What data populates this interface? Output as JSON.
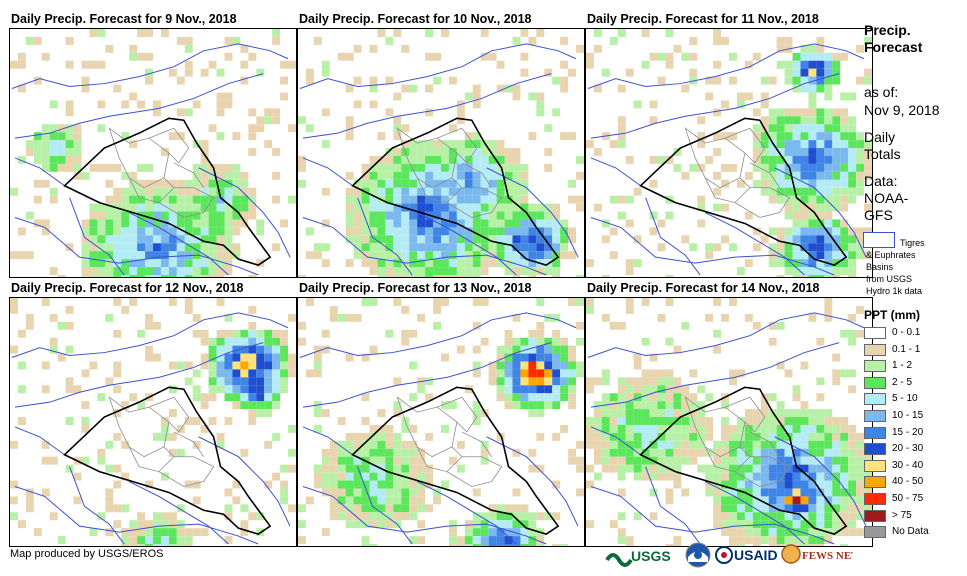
{
  "panels": [
    {
      "title": "Daily Precip. Forecast for 9 Nov., 2018"
    },
    {
      "title": "Daily Precip. Forecast for 10 Nov., 2018"
    },
    {
      "title": "Daily Precip. Forecast for 11 Nov., 2018"
    },
    {
      "title": "Daily Precip. Forecast for 12 Nov., 2018"
    },
    {
      "title": "Daily Precip. Forecast for 13 Nov., 2018"
    },
    {
      "title": "Daily Precip. Forecast for 14 Nov., 2018"
    }
  ],
  "sidebar": {
    "title_line1": "Precip.",
    "title_line2": "Forecast",
    "as_of_label": "as of:",
    "as_of_date": "Nov 9, 2018",
    "totals_line1": "Daily",
    "totals_line2": "Totals",
    "data_line1": "Data:",
    "data_line2": "NOAA-",
    "data_line3": "GFS",
    "basin_line1": "Tigres",
    "basin_line2": "& Euphrates",
    "basin_line3": "Basins",
    "basin_line4": "from USGS",
    "basin_line5": "Hydro 1k data"
  },
  "legend": {
    "title": "PPT (mm)",
    "items": [
      {
        "label": "0 - 0.1",
        "color": "#ffffff"
      },
      {
        "label": "0.1 - 1",
        "color": "#e8d5b0"
      },
      {
        "label": "1 - 2",
        "color": "#b8f0a8"
      },
      {
        "label": "2 - 5",
        "color": "#5ce65c"
      },
      {
        "label": "5 - 10",
        "color": "#b4ecf5"
      },
      {
        "label": "10 - 15",
        "color": "#7ab8ee"
      },
      {
        "label": "15 - 20",
        "color": "#3f84e6"
      },
      {
        "label": "20 - 30",
        "color": "#1f4fd0"
      },
      {
        "label": "30 - 40",
        "color": "#ffe27a"
      },
      {
        "label": "40 - 50",
        "color": "#ffa500"
      },
      {
        "label": "50 - 75",
        "color": "#ff2a00"
      },
      {
        "label": "> 75",
        "color": "#a11a1a"
      },
      {
        "label": "No Data",
        "color": "#999999"
      }
    ]
  },
  "footer": {
    "credit": "Map produced by USGS/EROS",
    "logo_usgs": "USGS",
    "logo_usaid": "USAID",
    "logo_fews": "FEWS NET"
  }
}
